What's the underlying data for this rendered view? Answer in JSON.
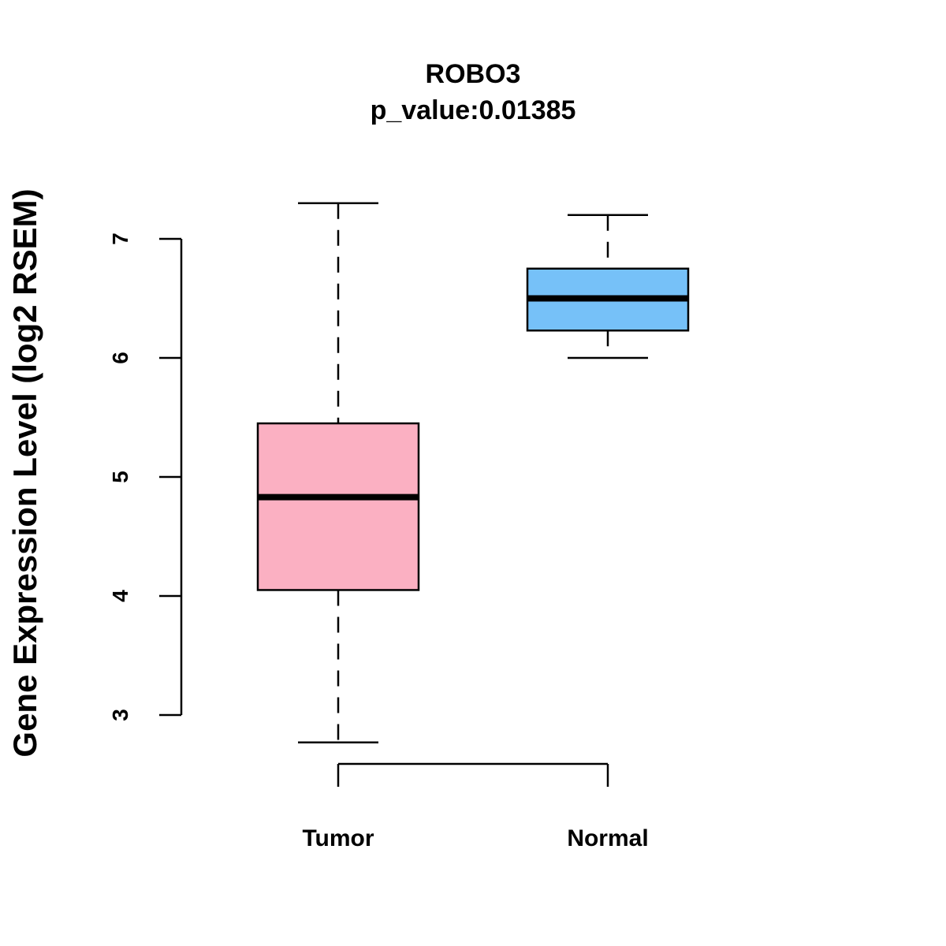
{
  "chart_data": {
    "type": "boxplot",
    "title": "ROBO3",
    "subtitle": "p_value:0.01385",
    "xlabel": "",
    "ylabel": "Gene Expression Level (log2 RSEM)",
    "ylim": [
      2.5,
      7.5
    ],
    "yticks": [
      3,
      4,
      5,
      6,
      7
    ],
    "grid": false,
    "categories": [
      "Tumor",
      "Normal"
    ],
    "boxes": [
      {
        "name": "Tumor",
        "whisker_low": 2.77,
        "q1": 4.05,
        "median": 4.83,
        "q3": 5.45,
        "whisker_high": 7.3,
        "color": "#FBB0C2"
      },
      {
        "name": "Normal",
        "whisker_low": 6.0,
        "q1": 6.23,
        "median": 6.5,
        "q3": 6.75,
        "whisker_high": 7.2,
        "color": "#76C1F8"
      }
    ]
  }
}
